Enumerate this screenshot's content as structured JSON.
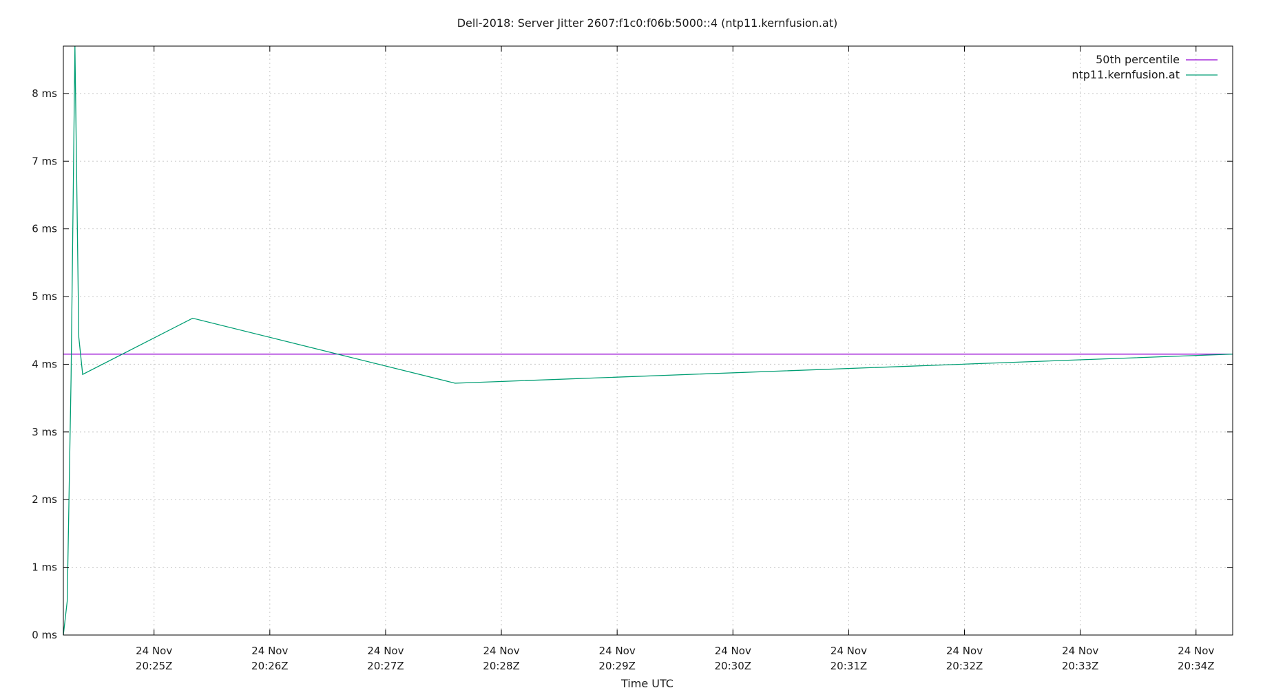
{
  "chart_data": {
    "type": "line",
    "title": "Dell-2018: Server Jitter 2607:f1c0:f06b:5000::4 (ntp11.kernfusion.at)",
    "xlabel": "Time UTC",
    "ylabel": "",
    "x_unit": "minutes",
    "xlim": [
      "20:24:13",
      "20:34:19"
    ],
    "ylim": [
      0,
      8.7
    ],
    "y_ticks": [
      {
        "value": 0,
        "label": "0 ms"
      },
      {
        "value": 1,
        "label": "1 ms"
      },
      {
        "value": 2,
        "label": "2 ms"
      },
      {
        "value": 3,
        "label": "3 ms"
      },
      {
        "value": 4,
        "label": "4 ms"
      },
      {
        "value": 5,
        "label": "5 ms"
      },
      {
        "value": 6,
        "label": "6 ms"
      },
      {
        "value": 7,
        "label": "7 ms"
      },
      {
        "value": 8,
        "label": "8 ms"
      }
    ],
    "x_ticks": [
      {
        "value": "20:25:00",
        "date": "24 Nov",
        "time": "20:25Z"
      },
      {
        "value": "20:26:00",
        "date": "24 Nov",
        "time": "20:26Z"
      },
      {
        "value": "20:27:00",
        "date": "24 Nov",
        "time": "20:27Z"
      },
      {
        "value": "20:28:00",
        "date": "24 Nov",
        "time": "20:28Z"
      },
      {
        "value": "20:29:00",
        "date": "24 Nov",
        "time": "20:29Z"
      },
      {
        "value": "20:30:00",
        "date": "24 Nov",
        "time": "20:30Z"
      },
      {
        "value": "20:31:00",
        "date": "24 Nov",
        "time": "20:31Z"
      },
      {
        "value": "20:32:00",
        "date": "24 Nov",
        "time": "20:32Z"
      },
      {
        "value": "20:33:00",
        "date": "24 Nov",
        "time": "20:33Z"
      },
      {
        "value": "20:34:00",
        "date": "24 Nov",
        "time": "20:34Z"
      }
    ],
    "grid": true,
    "legend_position": "top-right",
    "series": [
      {
        "name": "50th percentile",
        "color": "#9400d3",
        "points": [
          {
            "x": "20:24:13",
            "y": 4.15
          },
          {
            "x": "20:34:19",
            "y": 4.15
          }
        ]
      },
      {
        "name": "ntp11.kernfusion.at",
        "color": "#009e73",
        "points": [
          {
            "x": "20:24:13",
            "y": 0.0
          },
          {
            "x": "20:24:15",
            "y": 0.5
          },
          {
            "x": "20:24:17",
            "y": 3.8
          },
          {
            "x": "20:24:19",
            "y": 8.7
          },
          {
            "x": "20:24:21",
            "y": 4.4
          },
          {
            "x": "20:24:23",
            "y": 3.85
          },
          {
            "x": "20:25:20",
            "y": 4.68
          },
          {
            "x": "20:27:36",
            "y": 3.72
          },
          {
            "x": "20:34:19",
            "y": 4.15
          }
        ]
      }
    ]
  }
}
